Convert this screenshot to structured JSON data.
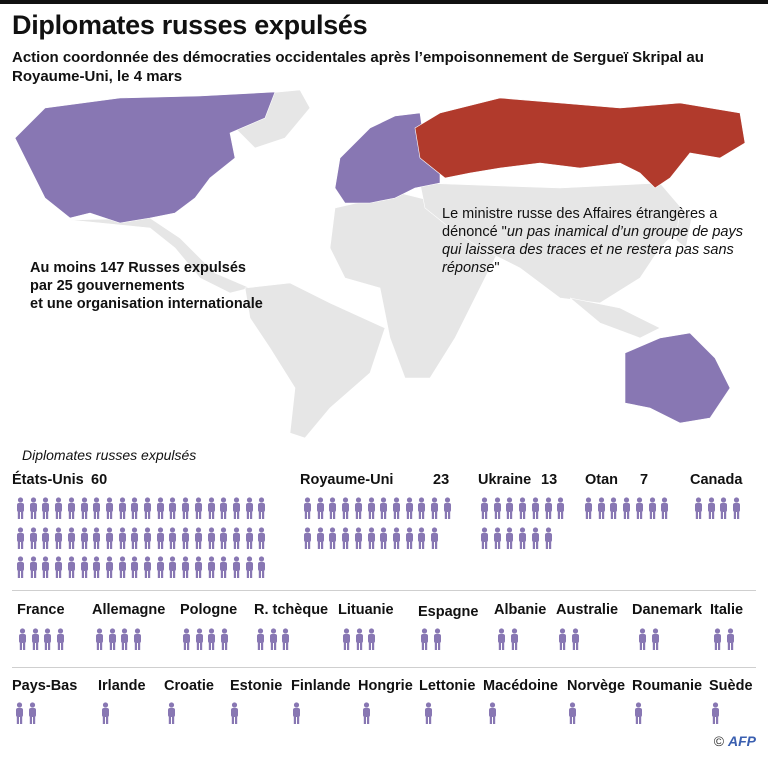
{
  "title": "Diplomates russes expulsés",
  "subtitle": "Action coordonnée des démocraties occidentales après l’empoisonnement de Sergueï Skripal au Royaume-Uni, le 4 mars",
  "notes": {
    "left": [
      "Au moins 147 Russes expulsés",
      "par 25 gouvernements",
      "et une organisation internationale"
    ],
    "right_prefix": "Le ministre russe des Affaires étrangères a dénoncé \"",
    "right_quote": "un pas inamical d’un groupe de pays qui laissera des traces et ne restera pas sans réponse",
    "right_suffix": "\""
  },
  "colors": {
    "expelling": "#8877b3",
    "russia": "#b13a2c",
    "land": "#e6e6e6",
    "icon": "#8877b3"
  },
  "credit": {
    "symbol": "©",
    "logo": "AFP"
  },
  "chart_data": {
    "type": "pictogram",
    "title": "Diplomates russes expulsés",
    "unit_icon": "person-icon",
    "entries": [
      {
        "name": "États-Unis",
        "count": 60,
        "label_count": "60"
      },
      {
        "name": "Royaume-Uni",
        "count": 23,
        "label_count": "23"
      },
      {
        "name": "Ukraine",
        "count": 13,
        "label_count": "13"
      },
      {
        "name": "Otan",
        "count": 7,
        "label_count": "7"
      },
      {
        "name": "Canada",
        "count": 4
      },
      {
        "name": "France",
        "count": 4
      },
      {
        "name": "Allemagne",
        "count": 4
      },
      {
        "name": "Pologne",
        "count": 4
      },
      {
        "name": "R. tchèque",
        "count": 3
      },
      {
        "name": "Lituanie",
        "count": 3
      },
      {
        "name": "Espagne",
        "count": 2
      },
      {
        "name": "Albanie",
        "count": 2
      },
      {
        "name": "Australie",
        "count": 2
      },
      {
        "name": "Danemark",
        "count": 2
      },
      {
        "name": "Italie",
        "count": 2
      },
      {
        "name": "Pays-Bas",
        "count": 2
      },
      {
        "name": "Irlande",
        "count": 1
      },
      {
        "name": "Croatie",
        "count": 1
      },
      {
        "name": "Estonie",
        "count": 1
      },
      {
        "name": "Finlande",
        "count": 1
      },
      {
        "name": "Hongrie",
        "count": 1
      },
      {
        "name": "Lettonie",
        "count": 1
      },
      {
        "name": "Macédoine",
        "count": 1
      },
      {
        "name": "Norvège",
        "count": 1
      },
      {
        "name": "Roumanie",
        "count": 1
      },
      {
        "name": "Suède",
        "count": 1
      }
    ]
  }
}
